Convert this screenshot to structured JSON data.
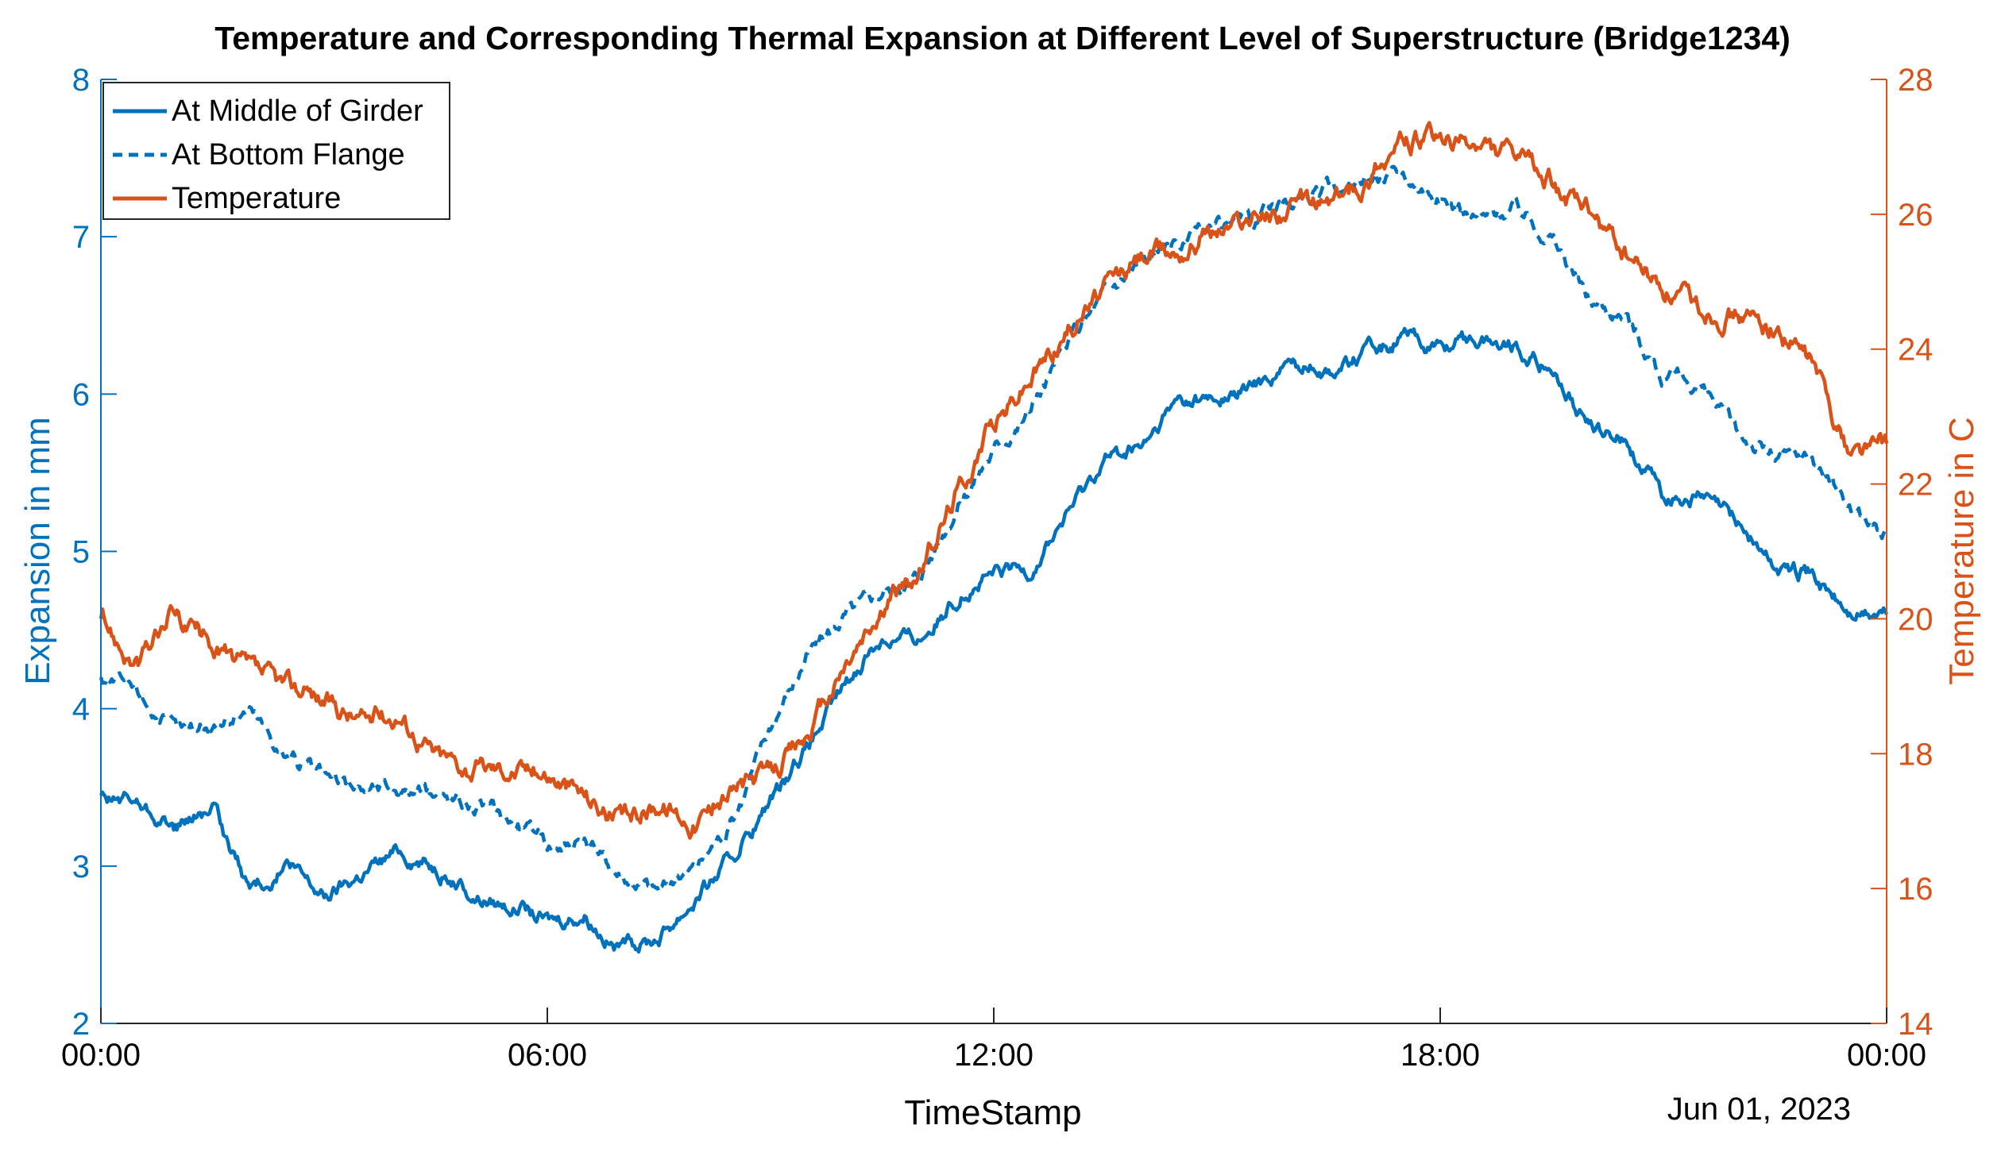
{
  "chart_data": {
    "type": "line",
    "title": "Temperature and Corresponding Thermal Expansion at Different Level of Superstructure (Bridge1234)",
    "xlabel": "TimeStamp",
    "x_secondary_label": "Jun 01, 2023",
    "ylabel": "Expansion in mm",
    "ylabel_right": "Temperature in C",
    "x_ticks": [
      "00:00",
      "06:00",
      "12:00",
      "18:00",
      "00:00"
    ],
    "x_tick_hours": [
      0,
      6,
      12,
      18,
      24
    ],
    "xlim_hours": [
      0,
      24
    ],
    "ylim": [
      2,
      8
    ],
    "y_ticks": [
      2,
      3,
      4,
      5,
      6,
      7,
      8
    ],
    "ylim_right": [
      14,
      28
    ],
    "y_ticks_right": [
      14,
      16,
      18,
      20,
      22,
      24,
      26,
      28
    ],
    "grid": false,
    "legend_position": "top-left",
    "colors": {
      "left_axis": "#0072BD",
      "right_axis": "#D95319",
      "text": "#000000"
    },
    "series": [
      {
        "name": "At Middle of Girder",
        "axis": "left",
        "style": "solid",
        "color": "#0072BD",
        "x_hours": [
          0,
          0.5,
          1,
          1.5,
          2,
          2.5,
          3,
          3.5,
          4,
          4.5,
          5,
          5.5,
          6,
          6.5,
          7,
          7.5,
          8,
          8.5,
          9,
          9.5,
          10,
          10.5,
          11,
          11.5,
          12,
          12.5,
          13,
          13.5,
          14,
          14.5,
          15,
          15.5,
          16,
          16.5,
          17,
          17.5,
          18,
          18.5,
          19,
          19.5,
          20,
          20.5,
          21,
          21.5,
          22,
          22.5,
          23,
          23.5,
          24
        ],
        "values": [
          3.45,
          3.4,
          3.25,
          3.35,
          2.85,
          3.0,
          2.8,
          2.95,
          3.1,
          3.0,
          2.8,
          2.75,
          2.65,
          2.7,
          2.45,
          2.55,
          2.8,
          3.05,
          3.4,
          3.75,
          4.15,
          4.45,
          4.45,
          4.7,
          4.85,
          4.9,
          5.25,
          5.6,
          5.65,
          5.95,
          5.95,
          6.05,
          6.2,
          6.15,
          6.25,
          6.35,
          6.3,
          6.35,
          6.3,
          6.15,
          5.8,
          5.7,
          5.35,
          5.35,
          5.2,
          4.9,
          4.85,
          4.6,
          4.6
        ]
      },
      {
        "name": "At Bottom Flange",
        "axis": "left",
        "style": "dashed",
        "color": "#0072BD",
        "x_hours": [
          0,
          0.5,
          1,
          1.5,
          2,
          2.5,
          3,
          3.5,
          4,
          4.5,
          5,
          5.5,
          6,
          6.5,
          7,
          7.5,
          8,
          8.5,
          9,
          9.5,
          10,
          10.5,
          11,
          11.5,
          12,
          12.5,
          13,
          13.5,
          14,
          14.5,
          15,
          15.5,
          16,
          16.5,
          17,
          17.5,
          18,
          18.5,
          19,
          19.5,
          20,
          20.5,
          21,
          21.5,
          22,
          22.5,
          23,
          23.5,
          24
        ],
        "values": [
          4.2,
          4.1,
          3.85,
          3.9,
          4.0,
          3.7,
          3.55,
          3.5,
          3.5,
          3.45,
          3.4,
          3.3,
          3.15,
          3.15,
          2.95,
          2.85,
          3.0,
          3.3,
          3.9,
          4.35,
          4.6,
          4.75,
          4.85,
          5.3,
          5.65,
          5.9,
          6.3,
          6.65,
          6.85,
          6.95,
          7.05,
          7.1,
          7.2,
          7.3,
          7.35,
          7.4,
          7.25,
          7.1,
          7.2,
          7.0,
          6.6,
          6.5,
          6.1,
          6.05,
          5.75,
          5.6,
          5.6,
          5.3,
          5.1
        ]
      },
      {
        "name": "Temperature",
        "axis": "right",
        "style": "solid",
        "color": "#D95319",
        "x_hours": [
          0,
          0.5,
          1,
          1.5,
          2,
          2.5,
          3,
          3.5,
          4,
          4.5,
          5,
          5.5,
          6,
          6.5,
          7,
          7.5,
          8,
          8.5,
          9,
          9.5,
          10,
          10.5,
          11,
          11.5,
          12,
          12.5,
          13,
          13.5,
          14,
          14.5,
          15,
          15.5,
          16,
          16.5,
          17,
          17.5,
          18,
          18.5,
          19,
          19.5,
          20,
          20.5,
          21,
          21.5,
          22,
          22.5,
          23,
          23.5,
          24
        ],
        "values": [
          20.0,
          19.3,
          20.1,
          19.6,
          19.2,
          19.0,
          18.8,
          18.5,
          18.6,
          18.0,
          17.8,
          17.8,
          17.7,
          17.4,
          17.0,
          17.3,
          17.0,
          17.5,
          17.7,
          18.3,
          19.3,
          20.1,
          20.7,
          21.9,
          22.9,
          23.6,
          24.3,
          24.9,
          25.4,
          25.5,
          25.8,
          26.0,
          26.1,
          26.2,
          26.5,
          27.1,
          27.1,
          27.0,
          26.8,
          26.5,
          26.0,
          25.4,
          24.9,
          24.6,
          24.5,
          24.3,
          23.8,
          22.5,
          22.6
        ]
      }
    ]
  }
}
